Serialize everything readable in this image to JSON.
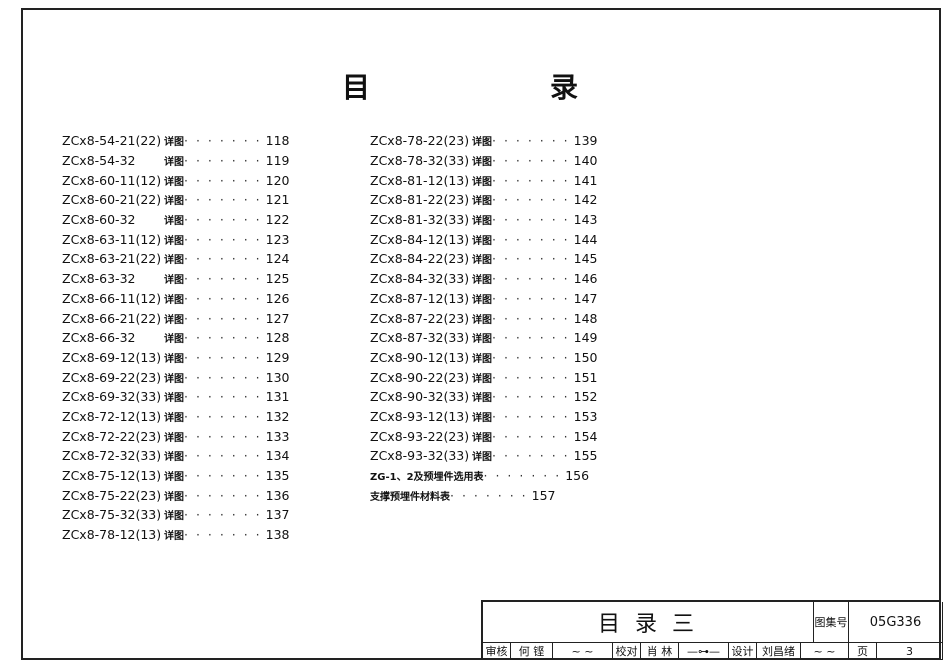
{
  "title": {
    "char1": "目",
    "char2": "录"
  },
  "left_items": [
    {
      "code": "ZCx8-54-21(22)",
      "label": "详图",
      "page": "118"
    },
    {
      "code": "ZCx8-54-32",
      "label": "详图",
      "page": "119"
    },
    {
      "code": "ZCx8-60-11(12)",
      "label": "详图",
      "page": "120"
    },
    {
      "code": "ZCx8-60-21(22)",
      "label": "详图",
      "page": "121"
    },
    {
      "code": "ZCx8-60-32",
      "label": "详图",
      "page": "122"
    },
    {
      "code": "ZCx8-63-11(12)",
      "label": "详图",
      "page": "123"
    },
    {
      "code": "ZCx8-63-21(22)",
      "label": "详图",
      "page": "124"
    },
    {
      "code": "ZCx8-63-32",
      "label": "详图",
      "page": "125"
    },
    {
      "code": "ZCx8-66-11(12)",
      "label": "详图",
      "page": "126"
    },
    {
      "code": "ZCx8-66-21(22)",
      "label": "详图",
      "page": "127"
    },
    {
      "code": "ZCx8-66-32",
      "label": "详图",
      "page": "128"
    },
    {
      "code": "ZCx8-69-12(13)",
      "label": "详图",
      "page": "129"
    },
    {
      "code": "ZCx8-69-22(23)",
      "label": "详图",
      "page": "130"
    },
    {
      "code": "ZCx8-69-32(33)",
      "label": "详图",
      "page": "131"
    },
    {
      "code": "ZCx8-72-12(13)",
      "label": "详图",
      "page": "132"
    },
    {
      "code": "ZCx8-72-22(23)",
      "label": "详图",
      "page": "133"
    },
    {
      "code": "ZCx8-72-32(33)",
      "label": "详图",
      "page": "134"
    },
    {
      "code": "ZCx8-75-12(13)",
      "label": "详图",
      "page": "135"
    },
    {
      "code": "ZCx8-75-22(23)",
      "label": "详图",
      "page": "136"
    },
    {
      "code": "ZCx8-75-32(33)",
      "label": "详图",
      "page": "137"
    },
    {
      "code": "ZCx8-78-12(13)",
      "label": "详图",
      "page": "138"
    }
  ],
  "right_items": [
    {
      "code": "ZCx8-78-22(23)",
      "label": "详图",
      "page": "139"
    },
    {
      "code": "ZCx8-78-32(33)",
      "label": "详图",
      "page": "140"
    },
    {
      "code": "ZCx8-81-12(13)",
      "label": "详图",
      "page": "141"
    },
    {
      "code": "ZCx8-81-22(23)",
      "label": "详图",
      "page": "142"
    },
    {
      "code": "ZCx8-81-32(33)",
      "label": "详图",
      "page": "143"
    },
    {
      "code": "ZCx8-84-12(13)",
      "label": "详图",
      "page": "144"
    },
    {
      "code": "ZCx8-84-22(23)",
      "label": "详图",
      "page": "145"
    },
    {
      "code": "ZCx8-84-32(33)",
      "label": "详图",
      "page": "146"
    },
    {
      "code": "ZCx8-87-12(13)",
      "label": "详图",
      "page": "147"
    },
    {
      "code": "ZCx8-87-22(23)",
      "label": "详图",
      "page": "148"
    },
    {
      "code": "ZCx8-87-32(33)",
      "label": "详图",
      "page": "149"
    },
    {
      "code": "ZCx8-90-12(13)",
      "label": "详图",
      "page": "150"
    },
    {
      "code": "ZCx8-90-22(23)",
      "label": "详图",
      "page": "151"
    },
    {
      "code": "ZCx8-90-32(33)",
      "label": "详图",
      "page": "152"
    },
    {
      "code": "ZCx8-93-12(13)",
      "label": "详图",
      "page": "153"
    },
    {
      "code": "ZCx8-93-22(23)",
      "label": "详图",
      "page": "154"
    },
    {
      "code": "ZCx8-93-32(33)",
      "label": "详图",
      "page": "155"
    },
    {
      "code": "",
      "label": "ZG-1、2及预埋件选用表",
      "page": "156"
    },
    {
      "code": "",
      "label": "支撑预埋件材料表",
      "page": "157"
    }
  ],
  "title_block": {
    "sheet_title": "目 录 三",
    "atlas_no_label": "图集号",
    "atlas_no": "05G336",
    "review_label": "审核",
    "review_name": "何 铿",
    "check_label": "校对",
    "check_name": "肖 林",
    "design_label": "设计",
    "design_name": "刘昌绪",
    "page_label": "页",
    "page_no": "3"
  }
}
